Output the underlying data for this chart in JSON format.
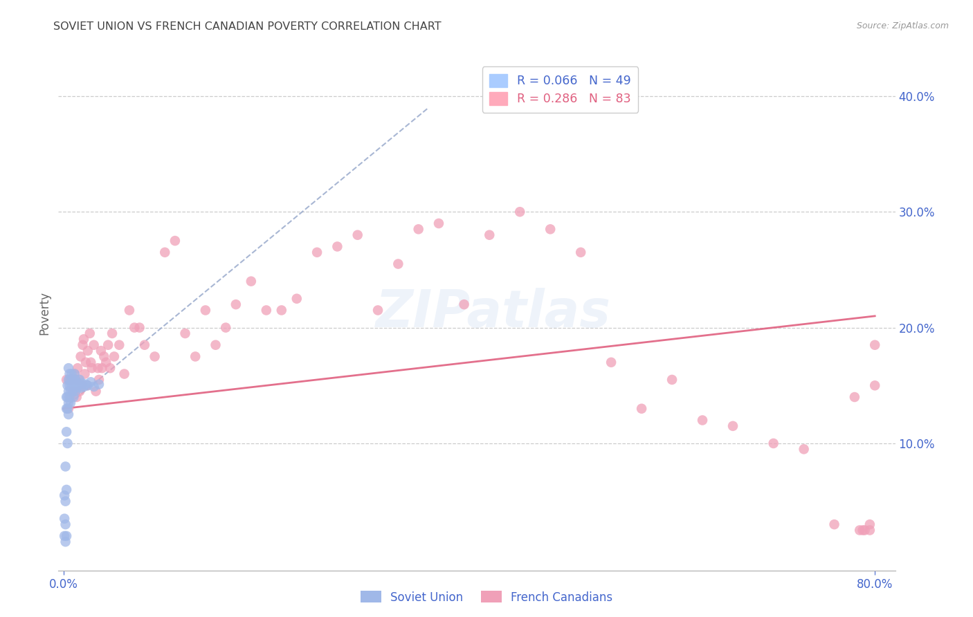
{
  "title": "SOVIET UNION VS FRENCH CANADIAN POVERTY CORRELATION CHART",
  "source": "Source: ZipAtlas.com",
  "ylabel": "Poverty",
  "ytick_labels": [
    "10.0%",
    "20.0%",
    "30.0%",
    "40.0%"
  ],
  "ytick_values": [
    0.1,
    0.2,
    0.3,
    0.4
  ],
  "xlim": [
    -0.005,
    0.82
  ],
  "ylim": [
    -0.01,
    0.435
  ],
  "watermark": "ZIPatlas",
  "soviet_color": "#a0b8e8",
  "french_color": "#f0a0b8",
  "soviet_trendline_color": "#99aacc",
  "french_trendline_color": "#e06080",
  "grid_color": "#cccccc",
  "title_color": "#444444",
  "axis_label_color": "#4466cc",
  "soviet_x": [
    0.001,
    0.001,
    0.001,
    0.002,
    0.002,
    0.002,
    0.002,
    0.003,
    0.003,
    0.003,
    0.003,
    0.003,
    0.004,
    0.004,
    0.004,
    0.004,
    0.005,
    0.005,
    0.005,
    0.005,
    0.005,
    0.006,
    0.006,
    0.006,
    0.007,
    0.007,
    0.007,
    0.008,
    0.008,
    0.009,
    0.009,
    0.01,
    0.01,
    0.011,
    0.011,
    0.012,
    0.012,
    0.013,
    0.014,
    0.015,
    0.016,
    0.017,
    0.018,
    0.02,
    0.022,
    0.024,
    0.027,
    0.03,
    0.035
  ],
  "soviet_y": [
    0.035,
    0.055,
    0.02,
    0.05,
    0.03,
    0.08,
    0.015,
    0.11,
    0.13,
    0.14,
    0.06,
    0.02,
    0.15,
    0.13,
    0.14,
    0.1,
    0.155,
    0.145,
    0.135,
    0.125,
    0.165,
    0.15,
    0.14,
    0.16,
    0.155,
    0.145,
    0.135,
    0.15,
    0.16,
    0.145,
    0.155,
    0.15,
    0.14,
    0.16,
    0.15,
    0.145,
    0.155,
    0.148,
    0.152,
    0.15,
    0.155,
    0.148,
    0.152,
    0.149,
    0.151,
    0.15,
    0.153,
    0.149,
    0.151
  ],
  "french_x": [
    0.003,
    0.005,
    0.006,
    0.007,
    0.008,
    0.009,
    0.01,
    0.011,
    0.012,
    0.013,
    0.014,
    0.015,
    0.016,
    0.017,
    0.018,
    0.019,
    0.02,
    0.021,
    0.022,
    0.023,
    0.024,
    0.026,
    0.027,
    0.028,
    0.03,
    0.032,
    0.034,
    0.035,
    0.037,
    0.038,
    0.04,
    0.042,
    0.044,
    0.046,
    0.048,
    0.05,
    0.055,
    0.06,
    0.065,
    0.07,
    0.075,
    0.08,
    0.09,
    0.1,
    0.11,
    0.12,
    0.13,
    0.14,
    0.15,
    0.16,
    0.17,
    0.185,
    0.2,
    0.215,
    0.23,
    0.25,
    0.27,
    0.29,
    0.31,
    0.33,
    0.35,
    0.37,
    0.395,
    0.42,
    0.45,
    0.48,
    0.51,
    0.54,
    0.57,
    0.6,
    0.63,
    0.66,
    0.7,
    0.73,
    0.76,
    0.78,
    0.8,
    0.8,
    0.795,
    0.795,
    0.79,
    0.788,
    0.785
  ],
  "french_y": [
    0.155,
    0.13,
    0.155,
    0.14,
    0.155,
    0.145,
    0.145,
    0.16,
    0.155,
    0.14,
    0.165,
    0.155,
    0.145,
    0.175,
    0.15,
    0.185,
    0.19,
    0.16,
    0.17,
    0.15,
    0.18,
    0.195,
    0.17,
    0.165,
    0.185,
    0.145,
    0.165,
    0.155,
    0.18,
    0.165,
    0.175,
    0.17,
    0.185,
    0.165,
    0.195,
    0.175,
    0.185,
    0.16,
    0.215,
    0.2,
    0.2,
    0.185,
    0.175,
    0.265,
    0.275,
    0.195,
    0.175,
    0.215,
    0.185,
    0.2,
    0.22,
    0.24,
    0.215,
    0.215,
    0.225,
    0.265,
    0.27,
    0.28,
    0.215,
    0.255,
    0.285,
    0.29,
    0.22,
    0.28,
    0.3,
    0.285,
    0.265,
    0.17,
    0.13,
    0.155,
    0.12,
    0.115,
    0.1,
    0.095,
    0.03,
    0.14,
    0.185,
    0.15,
    0.03,
    0.025,
    0.025,
    0.025,
    0.025
  ],
  "soviet_trend_x0": 0.0,
  "soviet_trend_x1": 0.36,
  "soviet_trend_y0": 0.13,
  "soviet_trend_y1": 0.39,
  "french_trend_x0": 0.0,
  "french_trend_x1": 0.8,
  "french_trend_y0": 0.13,
  "french_trend_y1": 0.21
}
